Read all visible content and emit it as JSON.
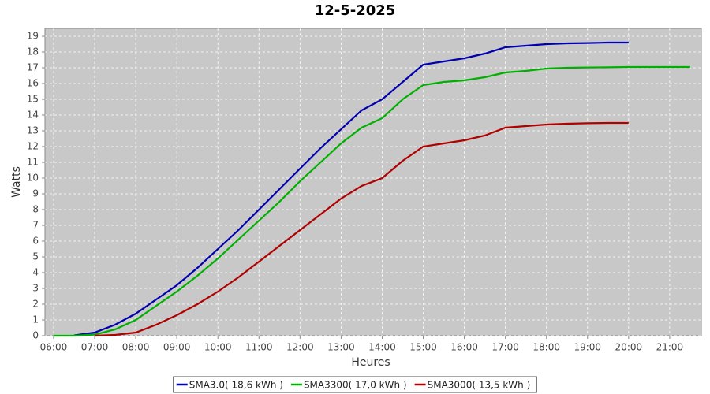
{
  "chart_data": {
    "type": "line",
    "title": "12-5-2025",
    "x_label": "Heures",
    "y_label": "Watts",
    "x": [
      6.0,
      6.5,
      7.0,
      7.5,
      8.0,
      8.5,
      9.0,
      9.5,
      10.0,
      10.5,
      11.0,
      11.5,
      12.0,
      12.5,
      13.0,
      13.5,
      14.0,
      14.5,
      15.0,
      15.5,
      16.0,
      16.5,
      17.0,
      17.5,
      18.0,
      18.5,
      19.0,
      19.5,
      20.0,
      20.5,
      21.0,
      21.5
    ],
    "series": [
      {
        "name": "SMA3.0( 18,6 kWh )",
        "color": "#0000b0",
        "values": [
          null,
          0.02,
          0.2,
          0.7,
          1.4,
          2.3,
          3.2,
          4.3,
          5.5,
          6.7,
          8.0,
          9.3,
          10.6,
          11.9,
          13.1,
          14.3,
          15.0,
          16.1,
          17.2,
          17.4,
          17.6,
          17.9,
          18.3,
          18.4,
          18.5,
          18.55,
          18.57,
          18.6,
          18.6,
          null,
          null,
          null
        ]
      },
      {
        "name": "SMA3300( 17,0 kWh )",
        "color": "#00b000",
        "values": [
          0,
          0,
          0.07,
          0.4,
          1.0,
          1.9,
          2.8,
          3.8,
          4.9,
          6.1,
          7.3,
          8.5,
          9.8,
          11.0,
          12.2,
          13.2,
          13.8,
          15.0,
          15.9,
          16.1,
          16.2,
          16.4,
          16.7,
          16.8,
          16.95,
          17.0,
          17.02,
          17.03,
          17.05,
          17.05,
          17.05,
          17.05
        ]
      },
      {
        "name": "SMA3000( 13,5 kWh )",
        "color": "#b00000",
        "values": [
          null,
          null,
          0,
          0.05,
          0.2,
          0.7,
          1.3,
          2.0,
          2.8,
          3.7,
          4.7,
          5.7,
          6.7,
          7.7,
          8.7,
          9.5,
          10.0,
          11.1,
          12.0,
          12.2,
          12.4,
          12.7,
          13.2,
          13.3,
          13.4,
          13.45,
          13.48,
          13.5,
          13.5,
          null,
          null,
          null
        ]
      }
    ],
    "xlim": [
      5.79,
      21.77
    ],
    "xticks": [
      {
        "value": 6,
        "label": "06:00"
      },
      {
        "value": 7,
        "label": "07:00"
      },
      {
        "value": 8,
        "label": "08:00"
      },
      {
        "value": 9,
        "label": "09:00"
      },
      {
        "value": 10,
        "label": "10:00"
      },
      {
        "value": 11,
        "label": "11:00"
      },
      {
        "value": 12,
        "label": "12:00"
      },
      {
        "value": 13,
        "label": "13:00"
      },
      {
        "value": 14,
        "label": "14:00"
      },
      {
        "value": 15,
        "label": "15:00"
      },
      {
        "value": 16,
        "label": "16:00"
      },
      {
        "value": 17,
        "label": "17:00"
      },
      {
        "value": 18,
        "label": "18:00"
      },
      {
        "value": 19,
        "label": "19:00"
      },
      {
        "value": 20,
        "label": "20:00"
      },
      {
        "value": 21,
        "label": "21:00"
      }
    ],
    "ylim": [
      0,
      19.5
    ],
    "yticks": [
      0,
      1,
      2,
      3,
      4,
      5,
      6,
      7,
      8,
      9,
      10,
      11,
      12,
      13,
      14,
      15,
      16,
      17,
      18,
      19
    ],
    "grid": true,
    "legend": "bottom"
  }
}
